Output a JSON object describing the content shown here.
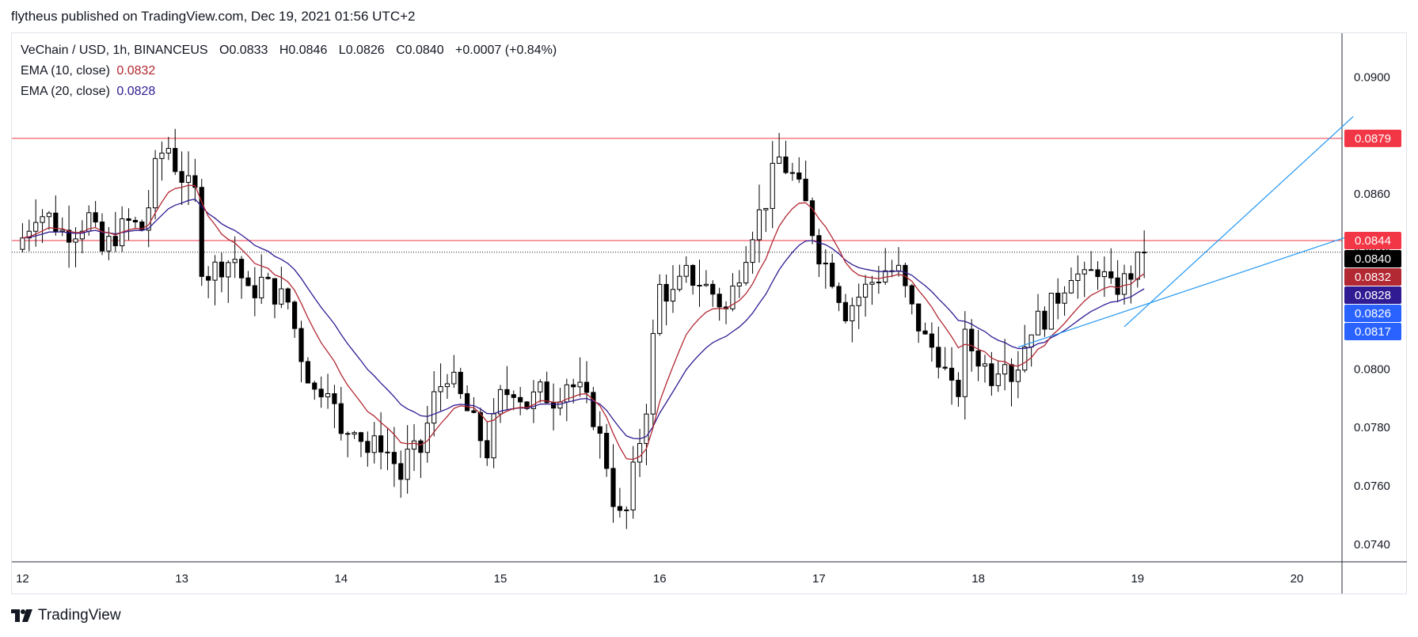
{
  "header": {
    "published_by": "flytheus published on TradingView.com, Dec 19, 2021 01:56 UTC+2"
  },
  "legend": {
    "symbol": "VeChain / USD, 1h, BINANCEUS",
    "o_label": "O",
    "o": "0.0833",
    "h_label": "H",
    "h": "0.0846",
    "l_label": "L",
    "l": "0.0826",
    "c_label": "C",
    "c": "0.0840",
    "change": "+0.0007 (+0.84%)",
    "ema10_label": "EMA (10, close)",
    "ema10_value": "0.0832",
    "ema20_label": "EMA (20, close)",
    "ema20_value": "0.0828"
  },
  "footer": {
    "brand": "TradingView"
  },
  "chart_data": {
    "type": "candlestick",
    "ylim": [
      0.0734,
      0.0915
    ],
    "y_ticks": [
      "0.0740",
      "0.0760",
      "0.0780",
      "0.0800",
      "0.0820",
      "0.0840",
      "0.0860",
      "0.0880",
      "0.0900"
    ],
    "x_ticks": [
      {
        "label": "12",
        "t": 0
      },
      {
        "label": "13",
        "t": 24
      },
      {
        "label": "14",
        "t": 48
      },
      {
        "label": "15",
        "t": 72
      },
      {
        "label": "16",
        "t": 96
      },
      {
        "label": "17",
        "t": 120
      },
      {
        "label": "18",
        "t": 144
      },
      {
        "label": "19",
        "t": 168
      },
      {
        "label": "20",
        "t": 192
      }
    ],
    "t_range": [
      -1.6,
      198.8
    ],
    "price_tags": [
      {
        "label": "0.0879",
        "value": 0.0879,
        "color": "#f23645"
      },
      {
        "label": "0.0844",
        "value": 0.0844,
        "color": "#f23645"
      },
      {
        "label": "0.0840",
        "value": 0.084,
        "color": "#000000"
      },
      {
        "label": "0.0832",
        "value": 0.0832,
        "color": "#b22833"
      },
      {
        "label": "0.0828",
        "value": 0.0828,
        "color": "#311b92"
      },
      {
        "label": "0.0826",
        "value": 0.0826,
        "color": "#2962ff"
      },
      {
        "label": "0.0817",
        "value": 0.0817,
        "color": "#2962ff"
      }
    ],
    "horizontal_lines": [
      {
        "value": 0.0879,
        "color": "#f23645"
      },
      {
        "value": 0.0844,
        "color": "#f23645"
      }
    ],
    "last_price": 0.084,
    "trendlines": [
      {
        "t1": 150,
        "p1": 0.08075,
        "t2": 200.5,
        "p2": 0.0846,
        "color": "#2196f3"
      },
      {
        "t1": 166,
        "p1": 0.08145,
        "t2": 200.5,
        "p2": 0.08865,
        "color": "#2196f3"
      }
    ],
    "ema10_color": "#b22833",
    "ema20_color": "#311b92",
    "keypoints": [
      [
        0,
        0.0845
      ],
      [
        2,
        0.0854
      ],
      [
        4,
        0.0852
      ],
      [
        6,
        0.0847
      ],
      [
        8,
        0.0848
      ],
      [
        10,
        0.0852
      ],
      [
        12,
        0.084
      ],
      [
        14,
        0.0846
      ],
      [
        16,
        0.085
      ],
      [
        18,
        0.0848
      ],
      [
        19,
        0.0856
      ],
      [
        20,
        0.0868
      ],
      [
        21,
        0.0874
      ],
      [
        22,
        0.0876
      ],
      [
        23,
        0.087
      ],
      [
        25,
        0.0862
      ],
      [
        26,
        0.086
      ],
      [
        27,
        0.0836
      ],
      [
        28,
        0.0833
      ],
      [
        30,
        0.0836
      ],
      [
        32,
        0.0838
      ],
      [
        34,
        0.0825
      ],
      [
        36,
        0.083
      ],
      [
        38,
        0.0826
      ],
      [
        40,
        0.0823
      ],
      [
        42,
        0.0805
      ],
      [
        44,
        0.0792
      ],
      [
        46,
        0.0796
      ],
      [
        48,
        0.0776
      ],
      [
        50,
        0.0782
      ],
      [
        52,
        0.0772
      ],
      [
        54,
        0.0775
      ],
      [
        56,
        0.0768
      ],
      [
        57,
        0.0763
      ],
      [
        58,
        0.077
      ],
      [
        60,
        0.0772
      ],
      [
        62,
        0.079
      ],
      [
        64,
        0.0799
      ],
      [
        66,
        0.079
      ],
      [
        68,
        0.0781
      ],
      [
        70,
        0.0772
      ],
      [
        72,
        0.079
      ],
      [
        74,
        0.0794
      ],
      [
        76,
        0.0788
      ],
      [
        78,
        0.0792
      ],
      [
        80,
        0.079
      ],
      [
        82,
        0.0796
      ],
      [
        84,
        0.0792
      ],
      [
        86,
        0.0784
      ],
      [
        88,
        0.0768
      ],
      [
        89,
        0.0756
      ],
      [
        90,
        0.0749
      ],
      [
        91,
        0.0751
      ],
      [
        92,
        0.0764
      ],
      [
        94,
        0.0788
      ],
      [
        95,
        0.081
      ],
      [
        96,
        0.0828
      ],
      [
        98,
        0.0825
      ],
      [
        100,
        0.0832
      ],
      [
        102,
        0.083
      ],
      [
        104,
        0.0826
      ],
      [
        106,
        0.082
      ],
      [
        108,
        0.0834
      ],
      [
        110,
        0.0848
      ],
      [
        112,
        0.0858
      ],
      [
        113,
        0.0866
      ],
      [
        114,
        0.0872
      ],
      [
        116,
        0.0866
      ],
      [
        118,
        0.0856
      ],
      [
        119,
        0.0848
      ],
      [
        120,
        0.084
      ],
      [
        122,
        0.0832
      ],
      [
        124,
        0.082
      ],
      [
        126,
        0.0825
      ],
      [
        128,
        0.083
      ],
      [
        130,
        0.0834
      ],
      [
        132,
        0.0833
      ],
      [
        134,
        0.082
      ],
      [
        136,
        0.081
      ],
      [
        138,
        0.0805
      ],
      [
        140,
        0.0792
      ],
      [
        141,
        0.0793
      ],
      [
        142,
        0.081
      ],
      [
        144,
        0.0804
      ],
      [
        146,
        0.0798
      ],
      [
        148,
        0.0806
      ],
      [
        149,
        0.0798
      ],
      [
        150,
        0.0802
      ],
      [
        152,
        0.0815
      ],
      [
        154,
        0.0818
      ],
      [
        156,
        0.0825
      ],
      [
        158,
        0.0834
      ],
      [
        160,
        0.083
      ],
      [
        162,
        0.0835
      ],
      [
        164,
        0.0827
      ],
      [
        166,
        0.083
      ],
      [
        168,
        0.0836
      ],
      [
        169,
        0.084
      ]
    ]
  }
}
